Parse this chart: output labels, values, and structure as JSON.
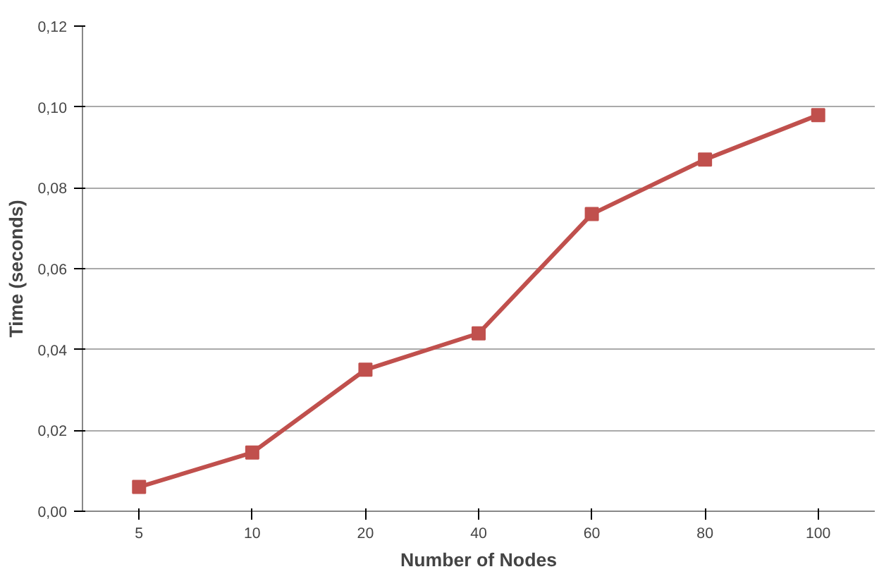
{
  "chart_data": {
    "type": "line",
    "xlabel": "Number of Nodes",
    "ylabel": "Time (seconds)",
    "categories": [
      "5",
      "10",
      "20",
      "40",
      "60",
      "80",
      "100"
    ],
    "series": [
      {
        "color": "#c0504d",
        "values": [
          0.006,
          0.0145,
          0.035,
          0.044,
          0.0735,
          0.087,
          0.098
        ]
      }
    ],
    "ylim": [
      0,
      0.12
    ],
    "yticks": [
      {
        "value": 0,
        "label": "0,00"
      },
      {
        "value": 0.02,
        "label": "0,02"
      },
      {
        "value": 0.04,
        "label": "0,04"
      },
      {
        "value": 0.06,
        "label": "0,06"
      },
      {
        "value": 0.08,
        "label": "0,08"
      },
      {
        "value": 0.1,
        "label": "0,10"
      },
      {
        "value": 0.12,
        "label": "0,12"
      }
    ],
    "grid": "y",
    "marker": "square",
    "line_style": "solid"
  }
}
